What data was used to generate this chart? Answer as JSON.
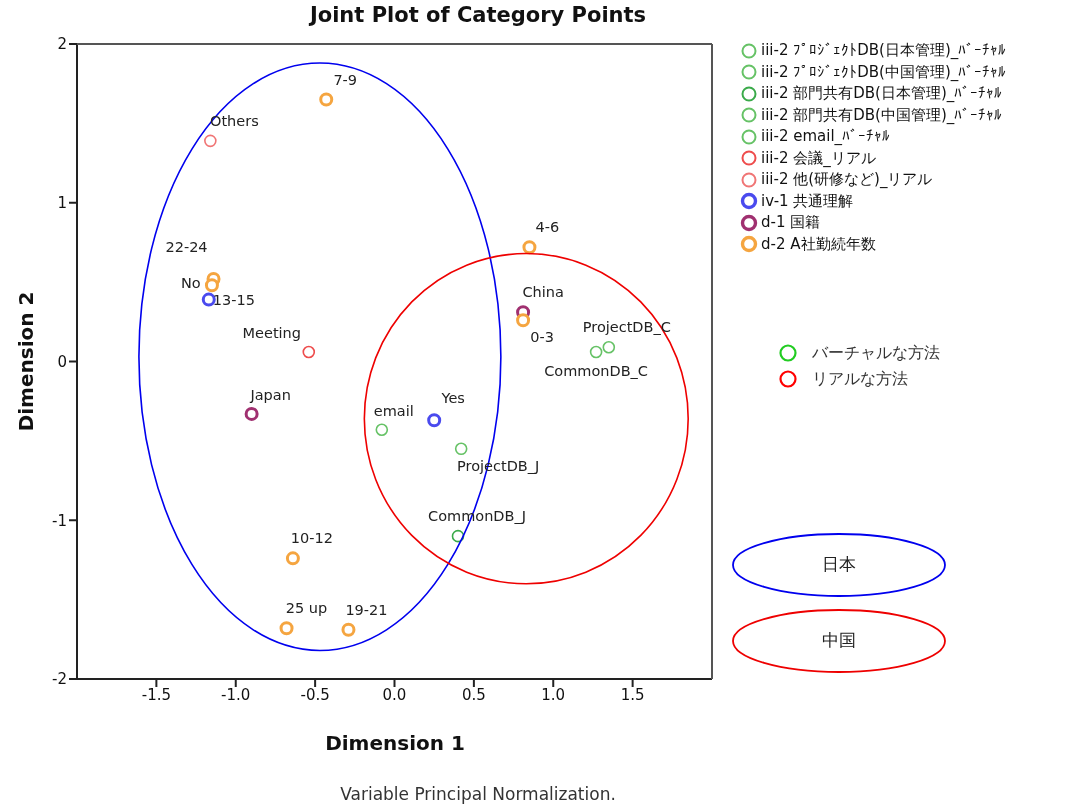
{
  "chart_data": {
    "type": "scatter",
    "title": "Joint Plot of Category Points",
    "xlabel": "Dimension 1",
    "ylabel": "Dimension 2",
    "xlim": [
      -2,
      2
    ],
    "ylim": [
      -2,
      2
    ],
    "xticks": [
      -1.5,
      {
        "value": -1,
        "label": "-1.0"
      },
      -0.5,
      {
        "value": 0,
        "label": "0.0"
      },
      0.5,
      {
        "value": 1,
        "label": "1.0"
      },
      1.5
    ],
    "yticks": [
      -2,
      -1,
      0,
      1,
      2
    ],
    "marker": "circle",
    "grid": false,
    "legend": "top right",
    "series": [
      {
        "name": "iii-2 ﾌﾟﾛｼﾞｪｸﾄDB(日本管理)_ﾊﾞｰﾁｬﾙ",
        "color": "#66c266",
        "x": [
          0.42
        ],
        "values": [
          -0.55
        ]
      },
      {
        "name": "iii-2 ﾌﾟﾛｼﾞｪｸﾄDB(中国管理)_ﾊﾞｰﾁｬﾙ",
        "color": "#66c266",
        "x": [
          1.35
        ],
        "values": [
          0.09
        ]
      },
      {
        "name": "iii-2 部門共有DB(日本管理)_ﾊﾞｰﾁｬﾙ",
        "color": "#3aaa4a",
        "x": [
          0.4
        ],
        "values": [
          -1.1
        ]
      },
      {
        "name": "iii-2 部門共有DB(中国管理)_ﾊﾞｰﾁｬﾙ",
        "color": "#66c266",
        "x": [
          1.27
        ],
        "values": [
          0.06
        ]
      },
      {
        "name": "iii-2 email_ﾊﾞｰﾁｬﾙ",
        "color": "#66c266",
        "x": [
          -0.08
        ],
        "values": [
          -0.43
        ]
      },
      {
        "name": "iii-2 会議_リアル",
        "color": "#ee4c4c",
        "x": [
          -0.54
        ],
        "values": [
          0.06
        ]
      },
      {
        "name": "iii-2 他(研修など)_リアル",
        "color": "#f07575",
        "x": [
          -1.16
        ],
        "values": [
          1.39
        ]
      },
      {
        "name": "iv-1 共通理解",
        "color": "#4a4aee",
        "x": [
          -1.17,
          0.25
        ],
        "values": [
          0.39,
          -0.37
        ]
      },
      {
        "name": "d-1 国籍",
        "color": "#a03070",
        "x": [
          -0.9,
          0.81
        ],
        "values": [
          -0.33,
          0.31
        ]
      },
      {
        "name": "d-2 A社勤続年数",
        "color": "#f5a540",
        "x": [
          -0.43,
          -1.14,
          -1.15,
          0.85,
          0.81,
          -0.64,
          -0.68,
          -0.29
        ],
        "values": [
          1.65,
          0.52,
          0.48,
          0.72,
          0.26,
          -1.24,
          -1.68,
          -1.69
        ]
      }
    ],
    "annotations": [
      {
        "text": "ProjectDB_J",
        "x": 0.42,
        "y": -0.55
      },
      {
        "text": "ProjectDB_C",
        "x": 1.35,
        "y": 0.09
      },
      {
        "text": "CommonDB_J",
        "x": 0.4,
        "y": -1.1
      },
      {
        "text": "CommonDB_C",
        "x": 1.27,
        "y": 0.06
      },
      {
        "text": "email",
        "x": -0.08,
        "y": -0.43
      },
      {
        "text": "Meeting",
        "x": -0.54,
        "y": 0.06
      },
      {
        "text": "Others",
        "x": -1.16,
        "y": 1.39
      },
      {
        "text": "No",
        "x": -1.17,
        "y": 0.39
      },
      {
        "text": "Yes",
        "x": 0.25,
        "y": -0.37
      },
      {
        "text": "Japan",
        "x": -0.9,
        "y": -0.33
      },
      {
        "text": "China",
        "x": 0.81,
        "y": 0.31
      },
      {
        "text": "7-9",
        "x": -0.43,
        "y": 1.65
      },
      {
        "text": "22-24",
        "x": -1.14,
        "y": 0.52
      },
      {
        "text": "13-15",
        "x": -1.15,
        "y": 0.48
      },
      {
        "text": "4-6",
        "x": 0.85,
        "y": 0.72
      },
      {
        "text": "0-3",
        "x": 0.81,
        "y": 0.26
      },
      {
        "text": "10-12",
        "x": -0.64,
        "y": -1.24
      },
      {
        "text": "25 up",
        "x": -0.68,
        "y": -1.68
      },
      {
        "text": "19-21",
        "x": -0.29,
        "y": -1.69
      },
      "Variable Principal Normalization.",
      "バーチャルな方法",
      "リアルな方法",
      "日本",
      "中国"
    ]
  }
}
